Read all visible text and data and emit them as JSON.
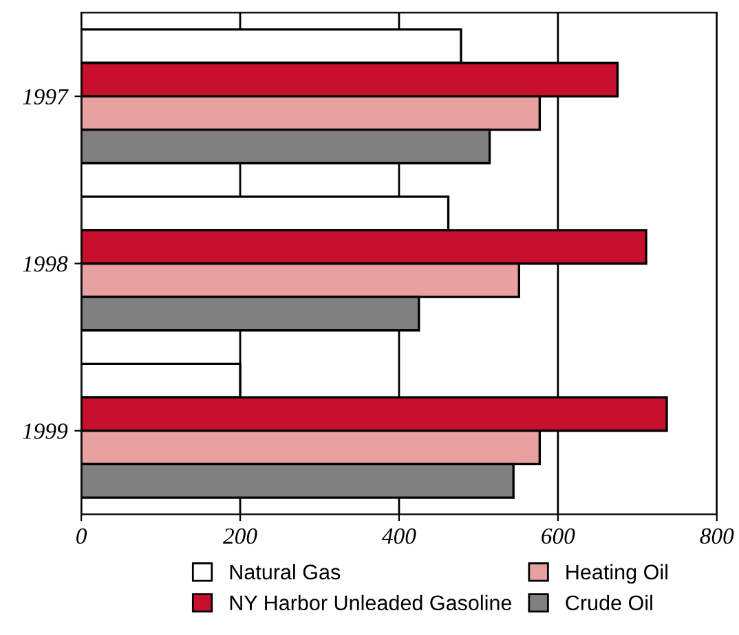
{
  "chart_data": {
    "type": "bar",
    "orientation": "horizontal",
    "categories": [
      "1997",
      "1998",
      "1999"
    ],
    "series": [
      {
        "name": "Natural Gas",
        "color": "#ffffff",
        "values": [
          478,
          462,
          200
        ]
      },
      {
        "name": "NY Harbor Unleaded Gasoline",
        "color": "#c8102e",
        "values": [
          675,
          711,
          737
        ]
      },
      {
        "name": "Heating Oil",
        "color": "#e8a0a0",
        "values": [
          577,
          551,
          577
        ]
      },
      {
        "name": "Crude Oil",
        "color": "#808080",
        "values": [
          514,
          425,
          544
        ]
      }
    ],
    "xlim": [
      0,
      800
    ],
    "xticks": [
      0,
      200,
      400,
      600,
      800
    ],
    "grid": "x",
    "legend": "bottom"
  }
}
